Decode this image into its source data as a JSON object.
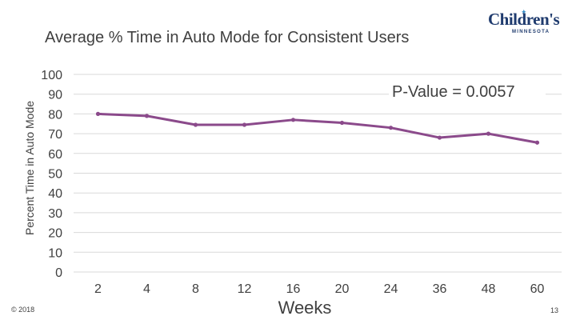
{
  "slide": {
    "copyright": "© 2018",
    "page_number": "13"
  },
  "logo": {
    "name": "Children's",
    "subtitle": "MINNESOTA"
  },
  "colors": {
    "series_line": "#8b4a8b",
    "gridline": "#d9d9d9",
    "text": "#404040"
  },
  "chart_data": {
    "type": "line",
    "title": "Average % Time in Auto Mode for Consistent Users",
    "xlabel": "Weeks",
    "ylabel": "Percent Time in Auto Mode",
    "categories": [
      "2",
      "4",
      "8",
      "12",
      "16",
      "20",
      "24",
      "36",
      "48",
      "60"
    ],
    "series": [
      {
        "name": "Average % Time in Auto Mode",
        "values": [
          80,
          79,
          74.5,
          74.5,
          77,
          75.5,
          73,
          68,
          70,
          65.5
        ]
      }
    ],
    "ylim": [
      0,
      100
    ],
    "yticks": [
      0,
      10,
      20,
      30,
      40,
      50,
      60,
      70,
      80,
      90,
      100
    ],
    "grid": true,
    "annotation": "P-Value = 0.0057"
  }
}
